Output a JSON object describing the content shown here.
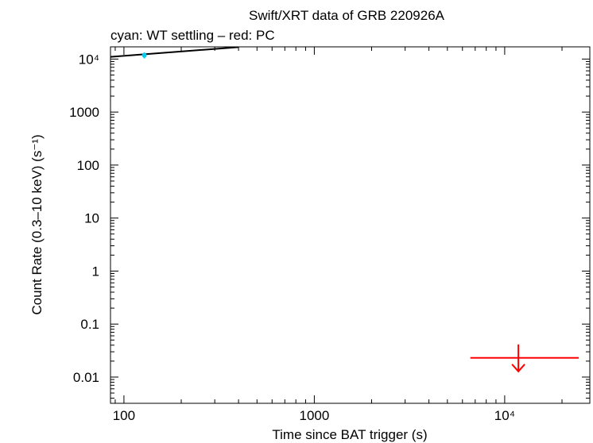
{
  "chart_data": {
    "type": "scatter",
    "title": "Swift/XRT data of GRB 220926A",
    "subtitle": "cyan: WT settling – red: PC",
    "xlabel": "Time since BAT trigger (s)",
    "ylabel": "Count Rate (0.3–10 keV) (s⁻¹)",
    "x_scale": "log",
    "y_scale": "log",
    "xlim": [
      85,
      28000
    ],
    "ylim": [
      0.0032,
      17000
    ],
    "grid": false,
    "x_ticks": [
      {
        "value": 100,
        "label": "100"
      },
      {
        "value": 1000,
        "label": "1000"
      },
      {
        "value": 10000,
        "label": "10⁴"
      }
    ],
    "y_ticks": [
      {
        "value": 0.01,
        "label": "0.01"
      },
      {
        "value": 0.1,
        "label": "0.1"
      },
      {
        "value": 1,
        "label": "1"
      },
      {
        "value": 10,
        "label": "10"
      },
      {
        "value": 100,
        "label": "100"
      },
      {
        "value": 1000,
        "label": "1000"
      },
      {
        "value": 10000,
        "label": "10⁴"
      }
    ],
    "series": [
      {
        "name": "WT settling",
        "color": "#00ccee",
        "points": [
          {
            "x": 128,
            "y": 11800,
            "x_err": [
              2.5,
              2.5
            ],
            "y_err": [
              1500,
              1500
            ]
          }
        ]
      },
      {
        "name": "PC",
        "color": "#ff0000",
        "upper_limits": [
          {
            "x": 11800,
            "y": 0.023,
            "x_range": [
              6600,
              24500
            ]
          }
        ]
      }
    ],
    "model": {
      "name": "fit",
      "color": "#000000",
      "points": [
        [
          85,
          11000
        ],
        [
          400,
          16800
        ]
      ]
    }
  }
}
